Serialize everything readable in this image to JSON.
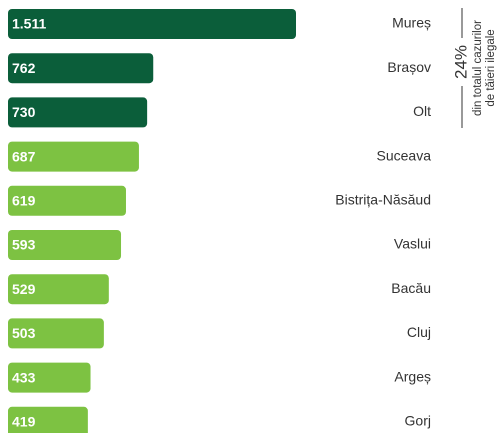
{
  "chart_data": {
    "type": "bar",
    "orientation": "horizontal",
    "categories": [
      "Mureș",
      "Brașov",
      "Olt",
      "Suceava",
      "Bistrița-Năsăud",
      "Vaslui",
      "Bacău",
      "Cluj",
      "Argeș",
      "Gorj"
    ],
    "values": [
      1511,
      762,
      730,
      687,
      619,
      593,
      529,
      503,
      433,
      419
    ],
    "value_labels": [
      "1.511",
      "762",
      "730",
      "687",
      "619",
      "593",
      "529",
      "503",
      "433",
      "419"
    ],
    "colors": [
      "#0b5e3a",
      "#0b5e3a",
      "#0b5e3a",
      "#7dc242",
      "#7dc242",
      "#7dc242",
      "#7dc242",
      "#7dc242",
      "#7dc242",
      "#7dc242"
    ],
    "annotations": [
      "24%",
      "din totalul cazurilor",
      "de tăieri ilegale"
    ]
  }
}
